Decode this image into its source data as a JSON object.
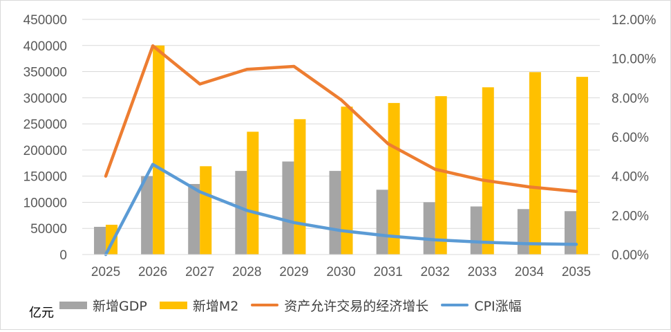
{
  "chart_data": {
    "type": "bar",
    "unit": "亿元",
    "categories": [
      "2025",
      "2026",
      "2027",
      "2028",
      "2029",
      "2030",
      "2031",
      "2032",
      "2033",
      "2034",
      "2035"
    ],
    "series": [
      {
        "name": "新增GDP",
        "kind": "bar",
        "axis": "left",
        "color": "#a5a5a5",
        "values": [
          53000,
          150000,
          135000,
          160000,
          178000,
          160000,
          124000,
          100000,
          92000,
          87000,
          83000
        ]
      },
      {
        "name": "新增M2",
        "kind": "bar",
        "axis": "left",
        "color": "#ffc000",
        "values": [
          57000,
          400000,
          169000,
          235000,
          259000,
          283000,
          290000,
          303000,
          320000,
          349000,
          340000
        ]
      },
      {
        "name": "资产允许交易的经济增长",
        "kind": "line",
        "axis": "right",
        "color": "#ed7d31",
        "values": [
          0.04,
          0.1065,
          0.087,
          0.0945,
          0.096,
          0.079,
          0.0565,
          0.0435,
          0.038,
          0.0345,
          0.0322
        ]
      },
      {
        "name": "CPI涨幅",
        "kind": "line",
        "axis": "right",
        "color": "#5b9bd5",
        "values": [
          0.0,
          0.046,
          0.032,
          0.0225,
          0.0163,
          0.0122,
          0.0095,
          0.0075,
          0.0063,
          0.0055,
          0.0052
        ]
      }
    ],
    "left_axis": {
      "ylim": [
        0,
        450000
      ],
      "ticks": [
        "0",
        "50000",
        "100000",
        "150000",
        "200000",
        "250000",
        "300000",
        "350000",
        "400000",
        "450000"
      ]
    },
    "right_axis": {
      "ylim": [
        0,
        0.12
      ],
      "ticks": [
        "0.00%",
        "2.00%",
        "4.00%",
        "6.00%",
        "8.00%",
        "10.00%",
        "12.00%"
      ]
    },
    "grid": true,
    "legend_position": "bottom"
  }
}
